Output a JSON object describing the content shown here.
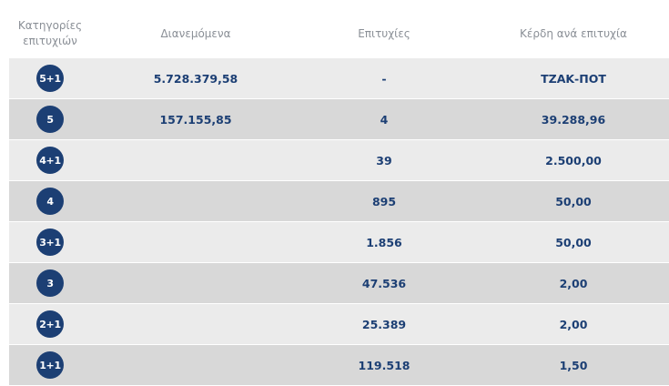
{
  "headers": {
    "category": "Κατηγορίες\nεπιτυχιών",
    "distributed": "Διανεμόμενα",
    "winners": "Επιτυχίες",
    "prize": "Κέρδη ανά επιτυχία"
  },
  "colors": {
    "badge": "#1c3f74",
    "value_text": "#1c3f74",
    "header_text": "#8a8f96",
    "row_light": "#ebebeb",
    "row_dark": "#d8d8d8"
  },
  "rows": [
    {
      "category": "5+1",
      "distributed": "5.728.379,58",
      "winners": "-",
      "prize": "ΤΖΑΚ-ΠΟΤ"
    },
    {
      "category": "5",
      "distributed": "157.155,85",
      "winners": "4",
      "prize": "39.288,96"
    },
    {
      "category": "4+1",
      "distributed": "",
      "winners": "39",
      "prize": "2.500,00"
    },
    {
      "category": "4",
      "distributed": "",
      "winners": "895",
      "prize": "50,00"
    },
    {
      "category": "3+1",
      "distributed": "",
      "winners": "1.856",
      "prize": "50,00"
    },
    {
      "category": "3",
      "distributed": "",
      "winners": "47.536",
      "prize": "2,00"
    },
    {
      "category": "2+1",
      "distributed": "",
      "winners": "25.389",
      "prize": "2,00"
    },
    {
      "category": "1+1",
      "distributed": "",
      "winners": "119.518",
      "prize": "1,50"
    }
  ]
}
